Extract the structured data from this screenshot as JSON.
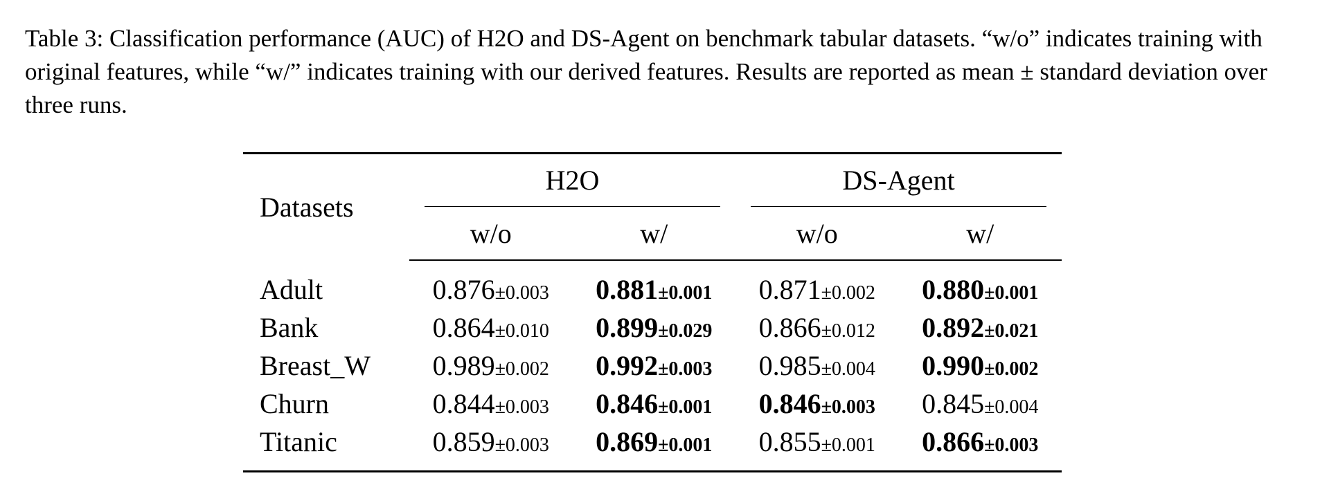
{
  "caption": "Table 3: Classification performance (AUC) of H2O and DS-Agent on benchmark tabular datasets. “w/o” indicates training with original features, while “w/” indicates training with our derived features. Results are reported as mean ± standard deviation over three runs.",
  "table": {
    "datasets_header": "Datasets",
    "groups": [
      {
        "name": "H2O",
        "sub": [
          "w/o",
          "w/"
        ]
      },
      {
        "name": "DS-Agent",
        "sub": [
          "w/o",
          "w/"
        ]
      }
    ],
    "rows": [
      {
        "name": "Adult",
        "cells": [
          {
            "mean": "0.876",
            "std": "±0.003",
            "bold": false
          },
          {
            "mean": "0.881",
            "std": "±0.001",
            "bold": true
          },
          {
            "mean": "0.871",
            "std": "±0.002",
            "bold": false
          },
          {
            "mean": "0.880",
            "std": "±0.001",
            "bold": true
          }
        ]
      },
      {
        "name": "Bank",
        "cells": [
          {
            "mean": "0.864",
            "std": "±0.010",
            "bold": false
          },
          {
            "mean": "0.899",
            "std": "±0.029",
            "bold": true
          },
          {
            "mean": "0.866",
            "std": "±0.012",
            "bold": false
          },
          {
            "mean": "0.892",
            "std": "±0.021",
            "bold": true
          }
        ]
      },
      {
        "name": "Breast_W",
        "cells": [
          {
            "mean": "0.989",
            "std": "±0.002",
            "bold": false
          },
          {
            "mean": "0.992",
            "std": "±0.003",
            "bold": true
          },
          {
            "mean": "0.985",
            "std": "±0.004",
            "bold": false
          },
          {
            "mean": "0.990",
            "std": "±0.002",
            "bold": true
          }
        ]
      },
      {
        "name": "Churn",
        "cells": [
          {
            "mean": "0.844",
            "std": "±0.003",
            "bold": false
          },
          {
            "mean": "0.846",
            "std": "±0.001",
            "bold": true
          },
          {
            "mean": "0.846",
            "std": "±0.003",
            "bold": true
          },
          {
            "mean": "0.845",
            "std": "±0.004",
            "bold": false
          }
        ]
      },
      {
        "name": "Titanic",
        "cells": [
          {
            "mean": "0.859",
            "std": "±0.003",
            "bold": false
          },
          {
            "mean": "0.869",
            "std": "±0.001",
            "bold": true
          },
          {
            "mean": "0.855",
            "std": "±0.001",
            "bold": false
          },
          {
            "mean": "0.866",
            "std": "±0.003",
            "bold": true
          }
        ]
      }
    ]
  }
}
